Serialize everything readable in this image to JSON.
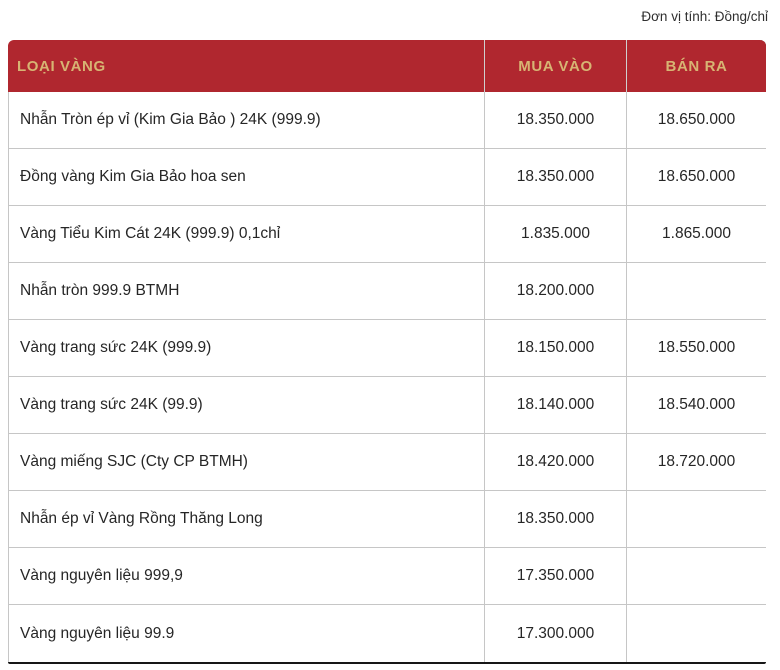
{
  "page": {
    "unit_label": "Đơn vị tính: Đồng/chỉ"
  },
  "table": {
    "columns": [
      {
        "key": "type",
        "label": "LOẠI VÀNG"
      },
      {
        "key": "buy",
        "label": "MUA VÀO"
      },
      {
        "key": "sell",
        "label": "BÁN RA"
      }
    ],
    "rows": [
      {
        "type": "Nhẫn Tròn ép vỉ (Kim Gia Bảo ) 24K (999.9)",
        "buy": "18.350.000",
        "sell": "18.650.000"
      },
      {
        "type": "Đồng vàng Kim Gia Bảo hoa sen",
        "buy": "18.350.000",
        "sell": "18.650.000"
      },
      {
        "type": "Vàng Tiểu Kim Cát 24K (999.9) 0,1chỉ",
        "buy": "1.835.000",
        "sell": "1.865.000"
      },
      {
        "type": "Nhẫn tròn 999.9 BTMH",
        "buy": "18.200.000",
        "sell": ""
      },
      {
        "type": "Vàng trang sức 24K (999.9)",
        "buy": "18.150.000",
        "sell": "18.550.000"
      },
      {
        "type": "Vàng trang sức 24K (99.9)",
        "buy": "18.140.000",
        "sell": "18.540.000"
      },
      {
        "type": "Vàng miếng SJC (Cty CP BTMH)",
        "buy": "18.420.000",
        "sell": "18.720.000"
      },
      {
        "type": "Nhẫn ép vỉ Vàng Rồng Thăng Long",
        "buy": "18.350.000",
        "sell": ""
      },
      {
        "type": "Vàng nguyên liệu 999,9",
        "buy": "17.350.000",
        "sell": ""
      },
      {
        "type": "Vàng nguyên liệu 99.9",
        "buy": "17.300.000",
        "sell": ""
      }
    ],
    "colors": {
      "header_bg": "#b0272f",
      "header_text": "#d7b473",
      "body_text": "#262626",
      "divider": "#c6c6c6",
      "dark_border": "#161616"
    }
  }
}
